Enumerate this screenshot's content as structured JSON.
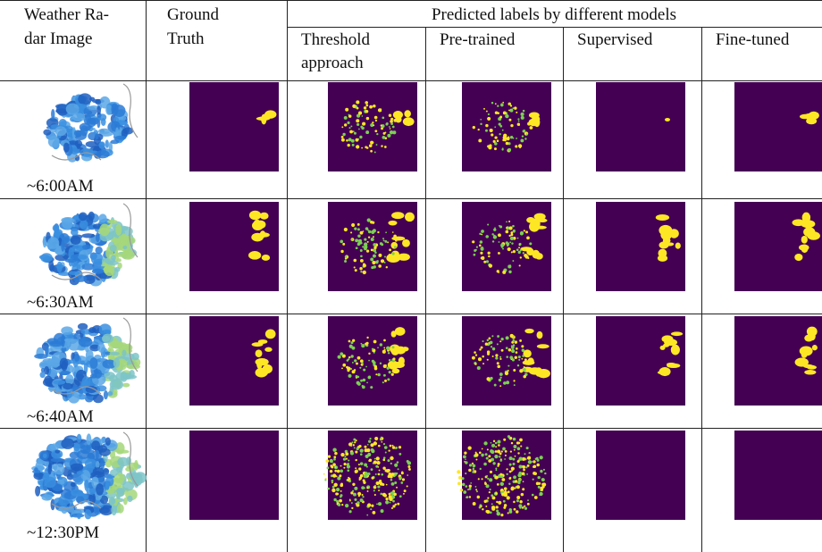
{
  "header": {
    "radar": [
      "Weather Ra-",
      "dar Image"
    ],
    "truth": [
      "Ground",
      "Truth"
    ],
    "group": "Predicted labels by different models",
    "models": [
      [
        "Threshold",
        "approach"
      ],
      [
        "Pre-trained"
      ],
      [
        "Supervised"
      ],
      [
        "Fine-tuned"
      ]
    ]
  },
  "rows": [
    {
      "time": "~6:00AM"
    },
    {
      "time": "~6:30AM"
    },
    {
      "time": "~6:40AM"
    },
    {
      "time": "~12:30PM"
    }
  ]
}
